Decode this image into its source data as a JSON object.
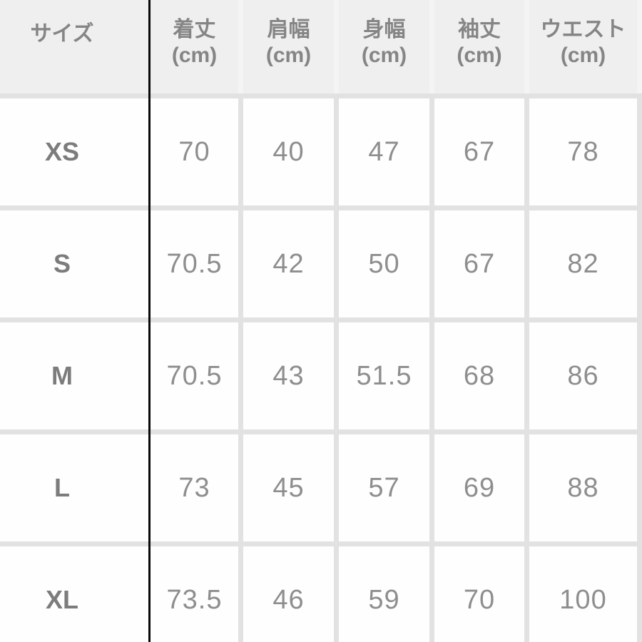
{
  "colors": {
    "header_bg": "#efefef",
    "cell_bg": "#fefefe",
    "grid_gap": "#e2e2e2",
    "header_gap": "#f4f4f4",
    "column_divider": "#0a0a0a",
    "header_text": "#858585",
    "size_text": "#7c7c7c",
    "value_text": "#8e8e8e"
  },
  "size_chart": {
    "columns": [
      {
        "label": "サイズ",
        "unit": ""
      },
      {
        "label": "着丈",
        "unit": "(cm)"
      },
      {
        "label": "肩幅",
        "unit": "(cm)"
      },
      {
        "label": "身幅",
        "unit": "(cm)"
      },
      {
        "label": "袖丈",
        "unit": "(cm)"
      },
      {
        "label": "ウエスト",
        "unit": "(cm)"
      }
    ],
    "rows": [
      {
        "size": "XS",
        "values": [
          "70",
          "40",
          "47",
          "67",
          "78"
        ]
      },
      {
        "size": "S",
        "values": [
          "70.5",
          "42",
          "50",
          "67",
          "82"
        ]
      },
      {
        "size": "M",
        "values": [
          "70.5",
          "43",
          "51.5",
          "68",
          "86"
        ]
      },
      {
        "size": "L",
        "values": [
          "73",
          "45",
          "57",
          "69",
          "88"
        ]
      },
      {
        "size": "XL",
        "values": [
          "73.5",
          "46",
          "59",
          "70",
          "100"
        ]
      }
    ]
  }
}
